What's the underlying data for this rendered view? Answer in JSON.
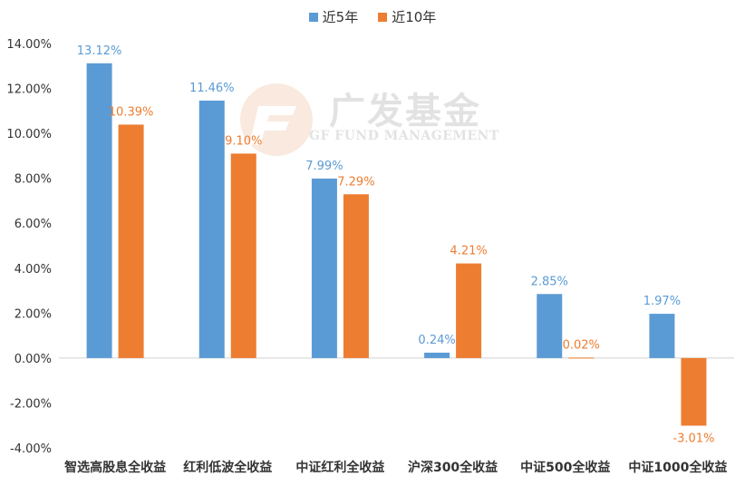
{
  "watermark": {
    "brand": "广发基金",
    "subtitle": "GF FUND MANAGEMENT"
  },
  "chart_data": {
    "type": "bar",
    "categories": [
      "智选高股息全收益",
      "红利低波全收益",
      "中证红利全收益",
      "沪深300全收益",
      "中证500全收益",
      "中证1000全收益"
    ],
    "series": [
      {
        "name": "近5年",
        "color": "#5B9BD5",
        "values": [
          13.12,
          11.46,
          7.99,
          0.24,
          2.85,
          1.97
        ],
        "labels": [
          "13.12%",
          "11.46%",
          "7.99%",
          "0.24%",
          "2.85%",
          "1.97%"
        ]
      },
      {
        "name": "近10年",
        "color": "#ED7D31",
        "values": [
          10.39,
          9.1,
          7.29,
          4.21,
          0.02,
          -3.01
        ],
        "labels": [
          "10.39%",
          "9.10%",
          "7.29%",
          "4.21%",
          "0.02%",
          "-3.01%"
        ]
      }
    ],
    "ylim": [
      -4,
      14
    ],
    "yticks": [
      14,
      12,
      10,
      8,
      6,
      4,
      2,
      0,
      -2,
      -4
    ],
    "ytick_labels": [
      "14.00%",
      "12.00%",
      "10.00%",
      "8.00%",
      "6.00%",
      "4.00%",
      "2.00%",
      "0.00%",
      "-2.00%",
      "-4.00%"
    ],
    "legend_position": "top-center",
    "grid": false
  }
}
